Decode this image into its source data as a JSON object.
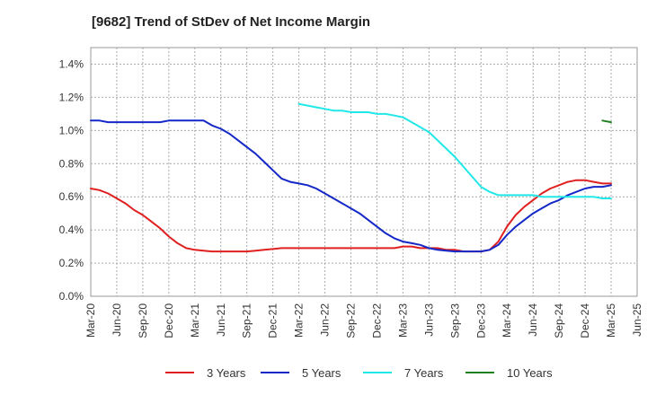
{
  "title": "[9682]  Trend of StDev of Net Income Margin",
  "chart_data": {
    "type": "line",
    "title": "[9682]  Trend of StDev of Net Income Margin",
    "xlabel": "",
    "ylabel": "",
    "ylim": [
      0,
      0.015
    ],
    "y_ticks": [
      "0.0%",
      "0.2%",
      "0.4%",
      "0.6%",
      "0.8%",
      "1.0%",
      "1.2%",
      "1.4%"
    ],
    "x_ticks": [
      "Mar-20",
      "Jun-20",
      "Sep-20",
      "Dec-20",
      "Mar-21",
      "Jun-21",
      "Sep-21",
      "Dec-21",
      "Mar-22",
      "Jun-22",
      "Sep-22",
      "Dec-22",
      "Mar-23",
      "Jun-23",
      "Sep-23",
      "Dec-23",
      "Mar-24",
      "Jun-24",
      "Sep-24",
      "Dec-24",
      "Mar-25",
      "Jun-25"
    ],
    "x_range": [
      "Mar-20",
      "Jun-25"
    ],
    "grid": true,
    "legend_position": "bottom",
    "series": [
      {
        "name": "3 Years",
        "color": "#e02020",
        "x": [
          "Mar-20",
          "Apr-20",
          "May-20",
          "Jun-20",
          "Jul-20",
          "Aug-20",
          "Sep-20",
          "Oct-20",
          "Nov-20",
          "Dec-20",
          "Jan-21",
          "Feb-21",
          "Mar-21",
          "Apr-21",
          "May-21",
          "Jun-21",
          "Jul-21",
          "Aug-21",
          "Sep-21",
          "Oct-21",
          "Nov-21",
          "Dec-21",
          "Jan-22",
          "Feb-22",
          "Mar-22",
          "Apr-22",
          "May-22",
          "Jun-22",
          "Jul-22",
          "Aug-22",
          "Sep-22",
          "Oct-22",
          "Nov-22",
          "Dec-22",
          "Jan-23",
          "Feb-23",
          "Mar-23",
          "Apr-23",
          "May-23",
          "Jun-23",
          "Jul-23",
          "Aug-23",
          "Sep-23",
          "Oct-23",
          "Nov-23",
          "Dec-23",
          "Jan-24",
          "Feb-24",
          "Mar-24",
          "Apr-24",
          "May-24",
          "Jun-24",
          "Jul-24",
          "Aug-24",
          "Sep-24",
          "Oct-24",
          "Nov-24",
          "Dec-24",
          "Jan-25",
          "Feb-25",
          "Mar-25"
        ],
        "values": [
          0.0065,
          0.0064,
          0.0062,
          0.0059,
          0.0056,
          0.0052,
          0.0049,
          0.0045,
          0.0041,
          0.0036,
          0.0032,
          0.0029,
          0.0028,
          0.00275,
          0.0027,
          0.0027,
          0.0027,
          0.0027,
          0.0027,
          0.00275,
          0.0028,
          0.00285,
          0.0029,
          0.0029,
          0.0029,
          0.0029,
          0.0029,
          0.0029,
          0.0029,
          0.0029,
          0.0029,
          0.0029,
          0.0029,
          0.0029,
          0.0029,
          0.0029,
          0.003,
          0.003,
          0.0029,
          0.0029,
          0.0029,
          0.0028,
          0.0028,
          0.0027,
          0.0027,
          0.0027,
          0.0028,
          0.0033,
          0.0042,
          0.0049,
          0.0054,
          0.0058,
          0.0062,
          0.0065,
          0.0067,
          0.0069,
          0.007,
          0.007,
          0.0069,
          0.0068,
          0.0068
        ]
      },
      {
        "name": "5 Years",
        "color": "#1428c8",
        "x": [
          "Mar-20",
          "Apr-20",
          "May-20",
          "Jun-20",
          "Jul-20",
          "Aug-20",
          "Sep-20",
          "Oct-20",
          "Nov-20",
          "Dec-20",
          "Jan-21",
          "Feb-21",
          "Mar-21",
          "Apr-21",
          "May-21",
          "Jun-21",
          "Jul-21",
          "Aug-21",
          "Sep-21",
          "Oct-21",
          "Nov-21",
          "Dec-21",
          "Jan-22",
          "Feb-22",
          "Mar-22",
          "Apr-22",
          "May-22",
          "Jun-22",
          "Jul-22",
          "Aug-22",
          "Sep-22",
          "Oct-22",
          "Nov-22",
          "Dec-22",
          "Jan-23",
          "Feb-23",
          "Mar-23",
          "Apr-23",
          "May-23",
          "Jun-23",
          "Jul-23",
          "Aug-23",
          "Sep-23",
          "Oct-23",
          "Nov-23",
          "Dec-23",
          "Jan-24",
          "Feb-24",
          "Mar-24",
          "Apr-24",
          "May-24",
          "Jun-24",
          "Jul-24",
          "Aug-24",
          "Sep-24",
          "Oct-24",
          "Nov-24",
          "Dec-24",
          "Jan-25",
          "Feb-25",
          "Mar-25"
        ],
        "values": [
          0.0106,
          0.0106,
          0.0105,
          0.0105,
          0.0105,
          0.0105,
          0.0105,
          0.0105,
          0.0105,
          0.0106,
          0.0106,
          0.0106,
          0.0106,
          0.0106,
          0.0103,
          0.0101,
          0.0098,
          0.0094,
          0.009,
          0.0086,
          0.0081,
          0.0076,
          0.0071,
          0.0069,
          0.0068,
          0.0067,
          0.0065,
          0.0062,
          0.0059,
          0.0056,
          0.0053,
          0.005,
          0.0046,
          0.0042,
          0.0038,
          0.0035,
          0.0033,
          0.0032,
          0.0031,
          0.0029,
          0.0028,
          0.00275,
          0.0027,
          0.0027,
          0.0027,
          0.0027,
          0.0028,
          0.0031,
          0.0037,
          0.0042,
          0.0046,
          0.005,
          0.0053,
          0.0056,
          0.0058,
          0.0061,
          0.0063,
          0.0065,
          0.0066,
          0.0066,
          0.0067
        ]
      },
      {
        "name": "7 Years",
        "color": "#20e8e8",
        "x": [
          "Mar-22",
          "Apr-22",
          "May-22",
          "Jun-22",
          "Jul-22",
          "Aug-22",
          "Sep-22",
          "Oct-22",
          "Nov-22",
          "Dec-22",
          "Jan-23",
          "Feb-23",
          "Mar-23",
          "Apr-23",
          "May-23",
          "Jun-23",
          "Jul-23",
          "Aug-23",
          "Sep-23",
          "Oct-23",
          "Nov-23",
          "Dec-23",
          "Jan-24",
          "Feb-24",
          "Mar-24",
          "Apr-24",
          "May-24",
          "Jun-24",
          "Jul-24",
          "Aug-24",
          "Sep-24",
          "Oct-24",
          "Nov-24",
          "Dec-24",
          "Jan-25",
          "Feb-25",
          "Mar-25"
        ],
        "values": [
          0.0116,
          0.0115,
          0.0114,
          0.0113,
          0.0112,
          0.0112,
          0.0111,
          0.0111,
          0.0111,
          0.011,
          0.011,
          0.0109,
          0.0108,
          0.0105,
          0.0102,
          0.0099,
          0.0094,
          0.0089,
          0.0084,
          0.0078,
          0.0072,
          0.0066,
          0.0063,
          0.0061,
          0.0061,
          0.0061,
          0.0061,
          0.0061,
          0.006,
          0.006,
          0.006,
          0.006,
          0.006,
          0.006,
          0.006,
          0.0059,
          0.0059
        ]
      },
      {
        "name": "10 Years",
        "color": "#208020",
        "x": [
          "Feb-25",
          "Mar-25"
        ],
        "values": [
          0.0106,
          0.0105
        ]
      }
    ]
  }
}
